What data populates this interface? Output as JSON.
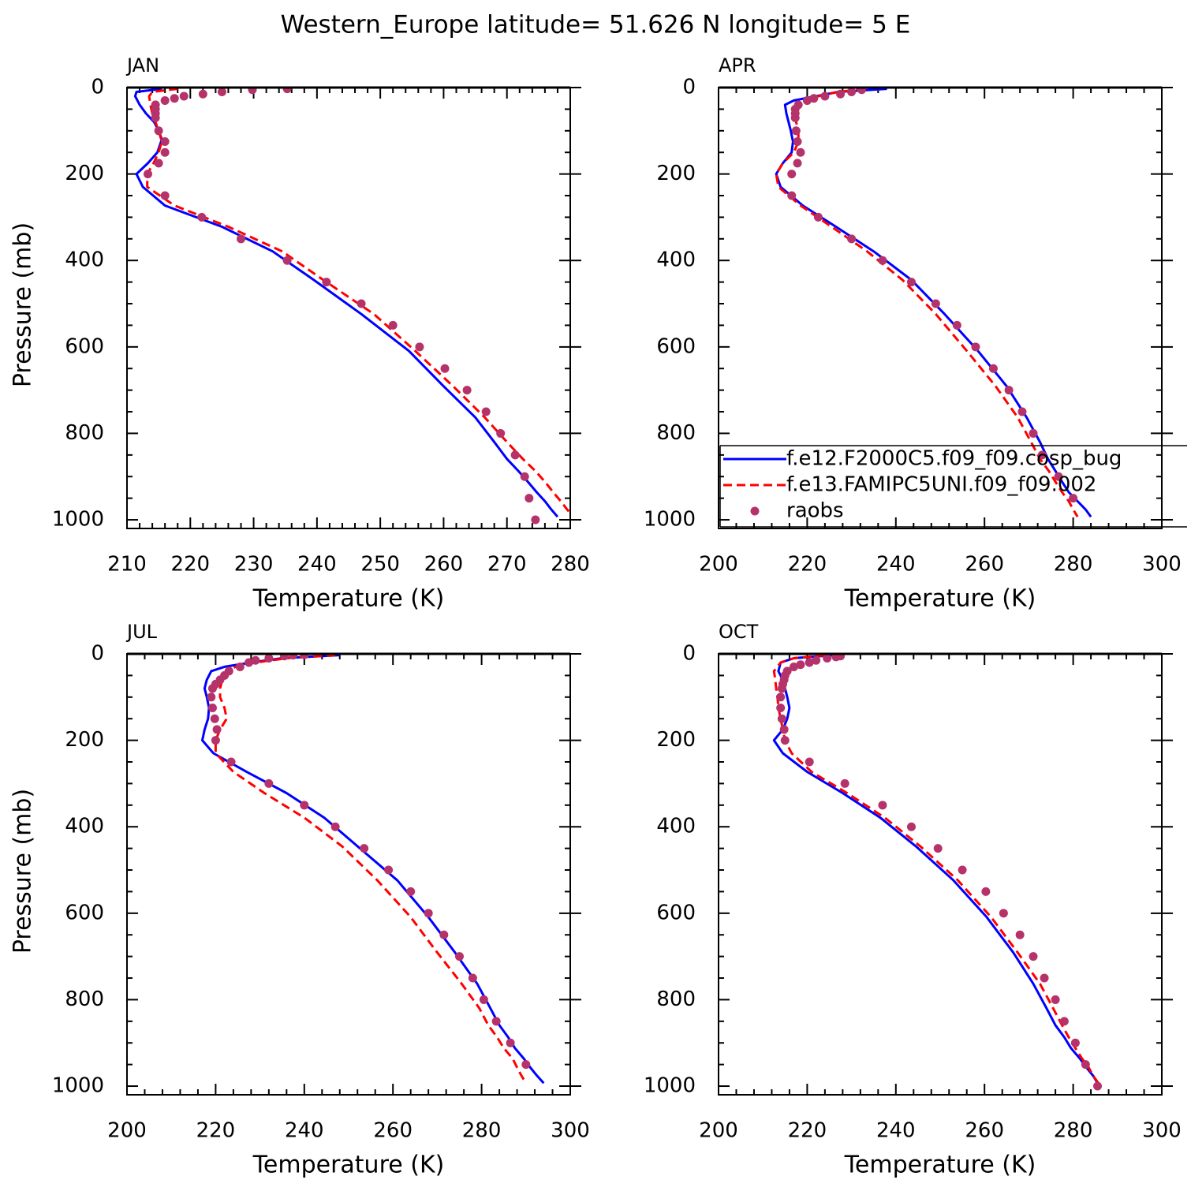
{
  "title": "Western_Europe  latitude= 51.626 N longitude= 5 E",
  "chart_data": [
    {
      "type": "line",
      "title": "JAN",
      "xlabel": "Temperature (K)",
      "ylabel": "Pressure (mb)",
      "xlim": [
        210,
        280
      ],
      "xticks": [
        210,
        220,
        230,
        240,
        250,
        260,
        270,
        280
      ],
      "ylim": [
        0,
        1020
      ],
      "yticks": [
        0,
        200,
        400,
        600,
        800,
        1000
      ],
      "y_reversed": true,
      "series": [
        {
          "color": "#0000ff",
          "style": "solid",
          "y": [
            3,
            10,
            20,
            40,
            60,
            80,
            100,
            120,
            150,
            175,
            200,
            230,
            273,
            322,
            379,
            445,
            524,
            609,
            691,
            763,
            820,
            859,
            887,
            912,
            936,
            957,
            976,
            993
          ],
          "x": [
            215.5,
            211.5,
            211.3,
            212,
            213,
            214.3,
            215,
            215.5,
            214.8,
            213.3,
            211.5,
            212.5,
            216,
            225,
            233,
            239.5,
            247,
            254.5,
            260,
            265,
            268,
            270,
            271.8,
            273.3,
            274.7,
            276,
            277,
            278
          ]
        },
        {
          "color": "#ff0000",
          "style": "dashed",
          "y": [
            3,
            10,
            20,
            40,
            60,
            80,
            100,
            125,
            150,
            175,
            200,
            230,
            273,
            322,
            379,
            445,
            524,
            609,
            691,
            763,
            820,
            859,
            887,
            912,
            936,
            957,
            976,
            993
          ],
          "x": [
            218,
            214,
            213.5,
            213.7,
            214,
            214.5,
            215,
            215.5,
            215,
            214.2,
            213.2,
            213.2,
            217.5,
            226,
            234.5,
            241,
            249,
            255.5,
            261.5,
            266.5,
            270,
            272.5,
            274.5,
            276,
            277.3,
            278.5,
            279.5,
            280.5
          ]
        },
        {
          "color": "#b5326a",
          "style": "markers",
          "y": [
            3,
            5,
            10,
            15,
            20,
            25,
            30,
            40,
            50,
            60,
            70,
            100,
            125,
            150,
            175,
            200,
            250,
            300,
            350,
            400,
            450,
            500,
            550,
            600,
            650,
            700,
            750,
            800,
            850,
            900,
            950,
            1000
          ],
          "x": [
            235.3,
            229.8,
            225,
            222,
            219,
            217.5,
            216,
            214.5,
            214.5,
            214.5,
            214.5,
            215,
            216,
            216,
            215,
            213.3,
            216,
            221.8,
            228,
            235.3,
            241.5,
            247,
            252,
            256.2,
            260.2,
            263.7,
            266.7,
            269,
            271.3,
            272.8,
            273.5,
            274.5
          ]
        }
      ]
    },
    {
      "type": "line",
      "title": "APR",
      "xlabel": "Temperature (K)",
      "xlim": [
        200,
        300
      ],
      "xticks": [
        200,
        220,
        240,
        260,
        280,
        300
      ],
      "ylim": [
        0,
        1020
      ],
      "yticks": [
        0,
        200,
        400,
        600,
        800,
        1000
      ],
      "y_reversed": true,
      "legend": "lower right",
      "series": [
        {
          "name": "f.e12.F2000C5.f09_f09.cosp_bug",
          "color": "#0000ff",
          "style": "solid",
          "y": [
            3,
            10,
            20,
            30,
            40,
            60,
            80,
            100,
            125,
            150,
            175,
            200,
            230,
            273,
            322,
            379,
            445,
            524,
            609,
            691,
            763,
            820,
            859,
            887,
            912,
            936,
            957,
            976,
            993
          ],
          "x": [
            238,
            227,
            222,
            217,
            215,
            215.3,
            215.8,
            216.3,
            216.8,
            216.5,
            214.5,
            213,
            214,
            219,
            226.5,
            235,
            243.5,
            251,
            258.5,
            265,
            269.5,
            272.5,
            274.3,
            276,
            277.5,
            279,
            281,
            282.8,
            284
          ]
        },
        {
          "name": "f.e13.FAMIPC5UNI.f09_f09.002",
          "color": "#ff0000",
          "style": "dashed",
          "y": [
            3,
            10,
            20,
            30,
            40,
            60,
            80,
            100,
            125,
            150,
            175,
            200,
            230,
            273,
            322,
            379,
            445,
            524,
            609,
            691,
            763,
            820,
            859,
            887,
            912,
            936,
            957,
            976,
            993
          ],
          "x": [
            233,
            227,
            222.5,
            219.5,
            218,
            217.5,
            217.5,
            218,
            218,
            217,
            214.5,
            213,
            213.5,
            218.5,
            225.5,
            233.5,
            241.5,
            249,
            256,
            262.5,
            267.5,
            270.5,
            272.5,
            274.5,
            276,
            277.5,
            279,
            280,
            281
          ]
        },
        {
          "name": "raobs",
          "color": "#b5326a",
          "style": "markers",
          "y": [
            5,
            10,
            15,
            20,
            25,
            30,
            40,
            50,
            60,
            70,
            100,
            125,
            150,
            175,
            200,
            250,
            300,
            350,
            400,
            450,
            500,
            550,
            600,
            650,
            700,
            750,
            800,
            850,
            900,
            950
          ],
          "x": [
            232.3,
            230,
            227.5,
            224,
            221.5,
            220,
            218,
            217.3,
            217.3,
            217.3,
            217.5,
            217.8,
            218.5,
            217.8,
            216.5,
            216.5,
            222.5,
            230,
            237,
            243.5,
            249,
            253.8,
            258,
            262,
            265.5,
            268.5,
            271,
            273,
            276.7,
            280
          ]
        }
      ]
    },
    {
      "type": "line",
      "title": "JUL",
      "xlabel": "Temperature (K)",
      "ylabel": "Pressure (mb)",
      "xlim": [
        200,
        300
      ],
      "xticks": [
        200,
        220,
        240,
        260,
        280,
        300
      ],
      "ylim": [
        0,
        1020
      ],
      "yticks": [
        0,
        200,
        400,
        600,
        800,
        1000
      ],
      "y_reversed": true,
      "series": [
        {
          "color": "#0000ff",
          "style": "solid",
          "y": [
            3,
            10,
            20,
            30,
            40,
            60,
            80,
            100,
            125,
            150,
            175,
            200,
            230,
            273,
            322,
            379,
            445,
            524,
            609,
            691,
            763,
            820,
            859,
            887,
            912,
            936,
            957,
            976,
            993
          ],
          "x": [
            248,
            235,
            228,
            222,
            219,
            218,
            217.5,
            218,
            218.5,
            218.3,
            217.5,
            217,
            219.5,
            227,
            236,
            244.5,
            252,
            261,
            268,
            274,
            279,
            282,
            284,
            286,
            287.5,
            289.5,
            291,
            292.5,
            294
          ]
        },
        {
          "color": "#ff0000",
          "style": "dashed",
          "y": [
            3,
            10,
            20,
            30,
            40,
            60,
            80,
            100,
            125,
            150,
            175,
            200,
            230,
            273,
            322,
            379,
            445,
            524,
            609,
            691,
            763,
            820,
            859,
            887,
            912,
            936,
            957,
            976,
            993
          ],
          "x": [
            247,
            236,
            229,
            224.5,
            222.5,
            221.5,
            221,
            221,
            222,
            222.5,
            221,
            220,
            220,
            224,
            231,
            240,
            248.5,
            256.5,
            264,
            270,
            275.5,
            279.5,
            281.5,
            283.5,
            285,
            287,
            288,
            289,
            290
          ]
        },
        {
          "color": "#b5326a",
          "style": "markers",
          "y": [
            2,
            3,
            5,
            10,
            15,
            20,
            30,
            40,
            50,
            60,
            70,
            80,
            100,
            125,
            150,
            175,
            200,
            250,
            300,
            350,
            400,
            450,
            500,
            550,
            600,
            650,
            700,
            750,
            800,
            850,
            900,
            950
          ],
          "x": [
            240,
            237.5,
            235.5,
            232,
            229,
            227.5,
            225.5,
            223,
            222,
            221,
            220,
            219.3,
            219,
            219.3,
            219.8,
            220.3,
            220,
            223.5,
            232,
            240,
            247,
            253.5,
            259,
            264,
            268,
            271.5,
            275,
            278,
            280.5,
            283.3,
            286.5,
            290
          ]
        }
      ]
    },
    {
      "type": "line",
      "title": "OCT",
      "xlabel": "Temperature (K)",
      "xlim": [
        200,
        300
      ],
      "xticks": [
        200,
        220,
        240,
        260,
        280,
        300
      ],
      "ylim": [
        0,
        1020
      ],
      "yticks": [
        0,
        200,
        400,
        600,
        800,
        1000
      ],
      "y_reversed": true,
      "series": [
        {
          "color": "#0000ff",
          "style": "solid",
          "y": [
            3,
            10,
            20,
            40,
            60,
            80,
            100,
            125,
            150,
            175,
            200,
            230,
            273,
            322,
            379,
            445,
            524,
            609,
            691,
            763,
            820,
            859,
            887,
            912,
            936,
            957,
            976,
            993
          ],
          "x": [
            226,
            217,
            214,
            213.5,
            214.5,
            215,
            215.5,
            216,
            215.5,
            214.5,
            212.5,
            214.5,
            220,
            228,
            236.5,
            244.5,
            253,
            260.5,
            266.5,
            271,
            274,
            276,
            278,
            279.5,
            281.5,
            283,
            284.5,
            285.5
          ]
        },
        {
          "color": "#ff0000",
          "style": "dashed",
          "y": [
            3,
            10,
            20,
            40,
            60,
            80,
            100,
            125,
            150,
            175,
            200,
            230,
            273,
            322,
            379,
            445,
            524,
            609,
            691,
            763,
            820,
            859,
            887,
            912,
            936,
            957,
            976,
            993
          ],
          "x": [
            224,
            217,
            214,
            212.5,
            212.8,
            213,
            213.3,
            213.5,
            214,
            214.5,
            215,
            216.5,
            221,
            229,
            237.5,
            245.5,
            254,
            261.5,
            267.5,
            272.5,
            275.5,
            277.5,
            279,
            280.5,
            282,
            283.5,
            284.5,
            285.7
          ]
        },
        {
          "color": "#b5326a",
          "style": "markers",
          "y": [
            5,
            7,
            10,
            15,
            20,
            25,
            30,
            40,
            50,
            60,
            70,
            80,
            100,
            125,
            150,
            175,
            200,
            250,
            300,
            350,
            400,
            450,
            500,
            550,
            600,
            650,
            700,
            750,
            800,
            850,
            900,
            950,
            1000
          ],
          "x": [
            227.5,
            226.5,
            224.5,
            222,
            220.5,
            218.5,
            217,
            215.5,
            215,
            214.8,
            214.5,
            214.3,
            214,
            214,
            214.3,
            214.8,
            215,
            220.5,
            228.5,
            237,
            243.5,
            249.5,
            255,
            260.3,
            264.3,
            268,
            271,
            273.5,
            276,
            278,
            280.5,
            282.8,
            285.5
          ]
        }
      ]
    }
  ]
}
